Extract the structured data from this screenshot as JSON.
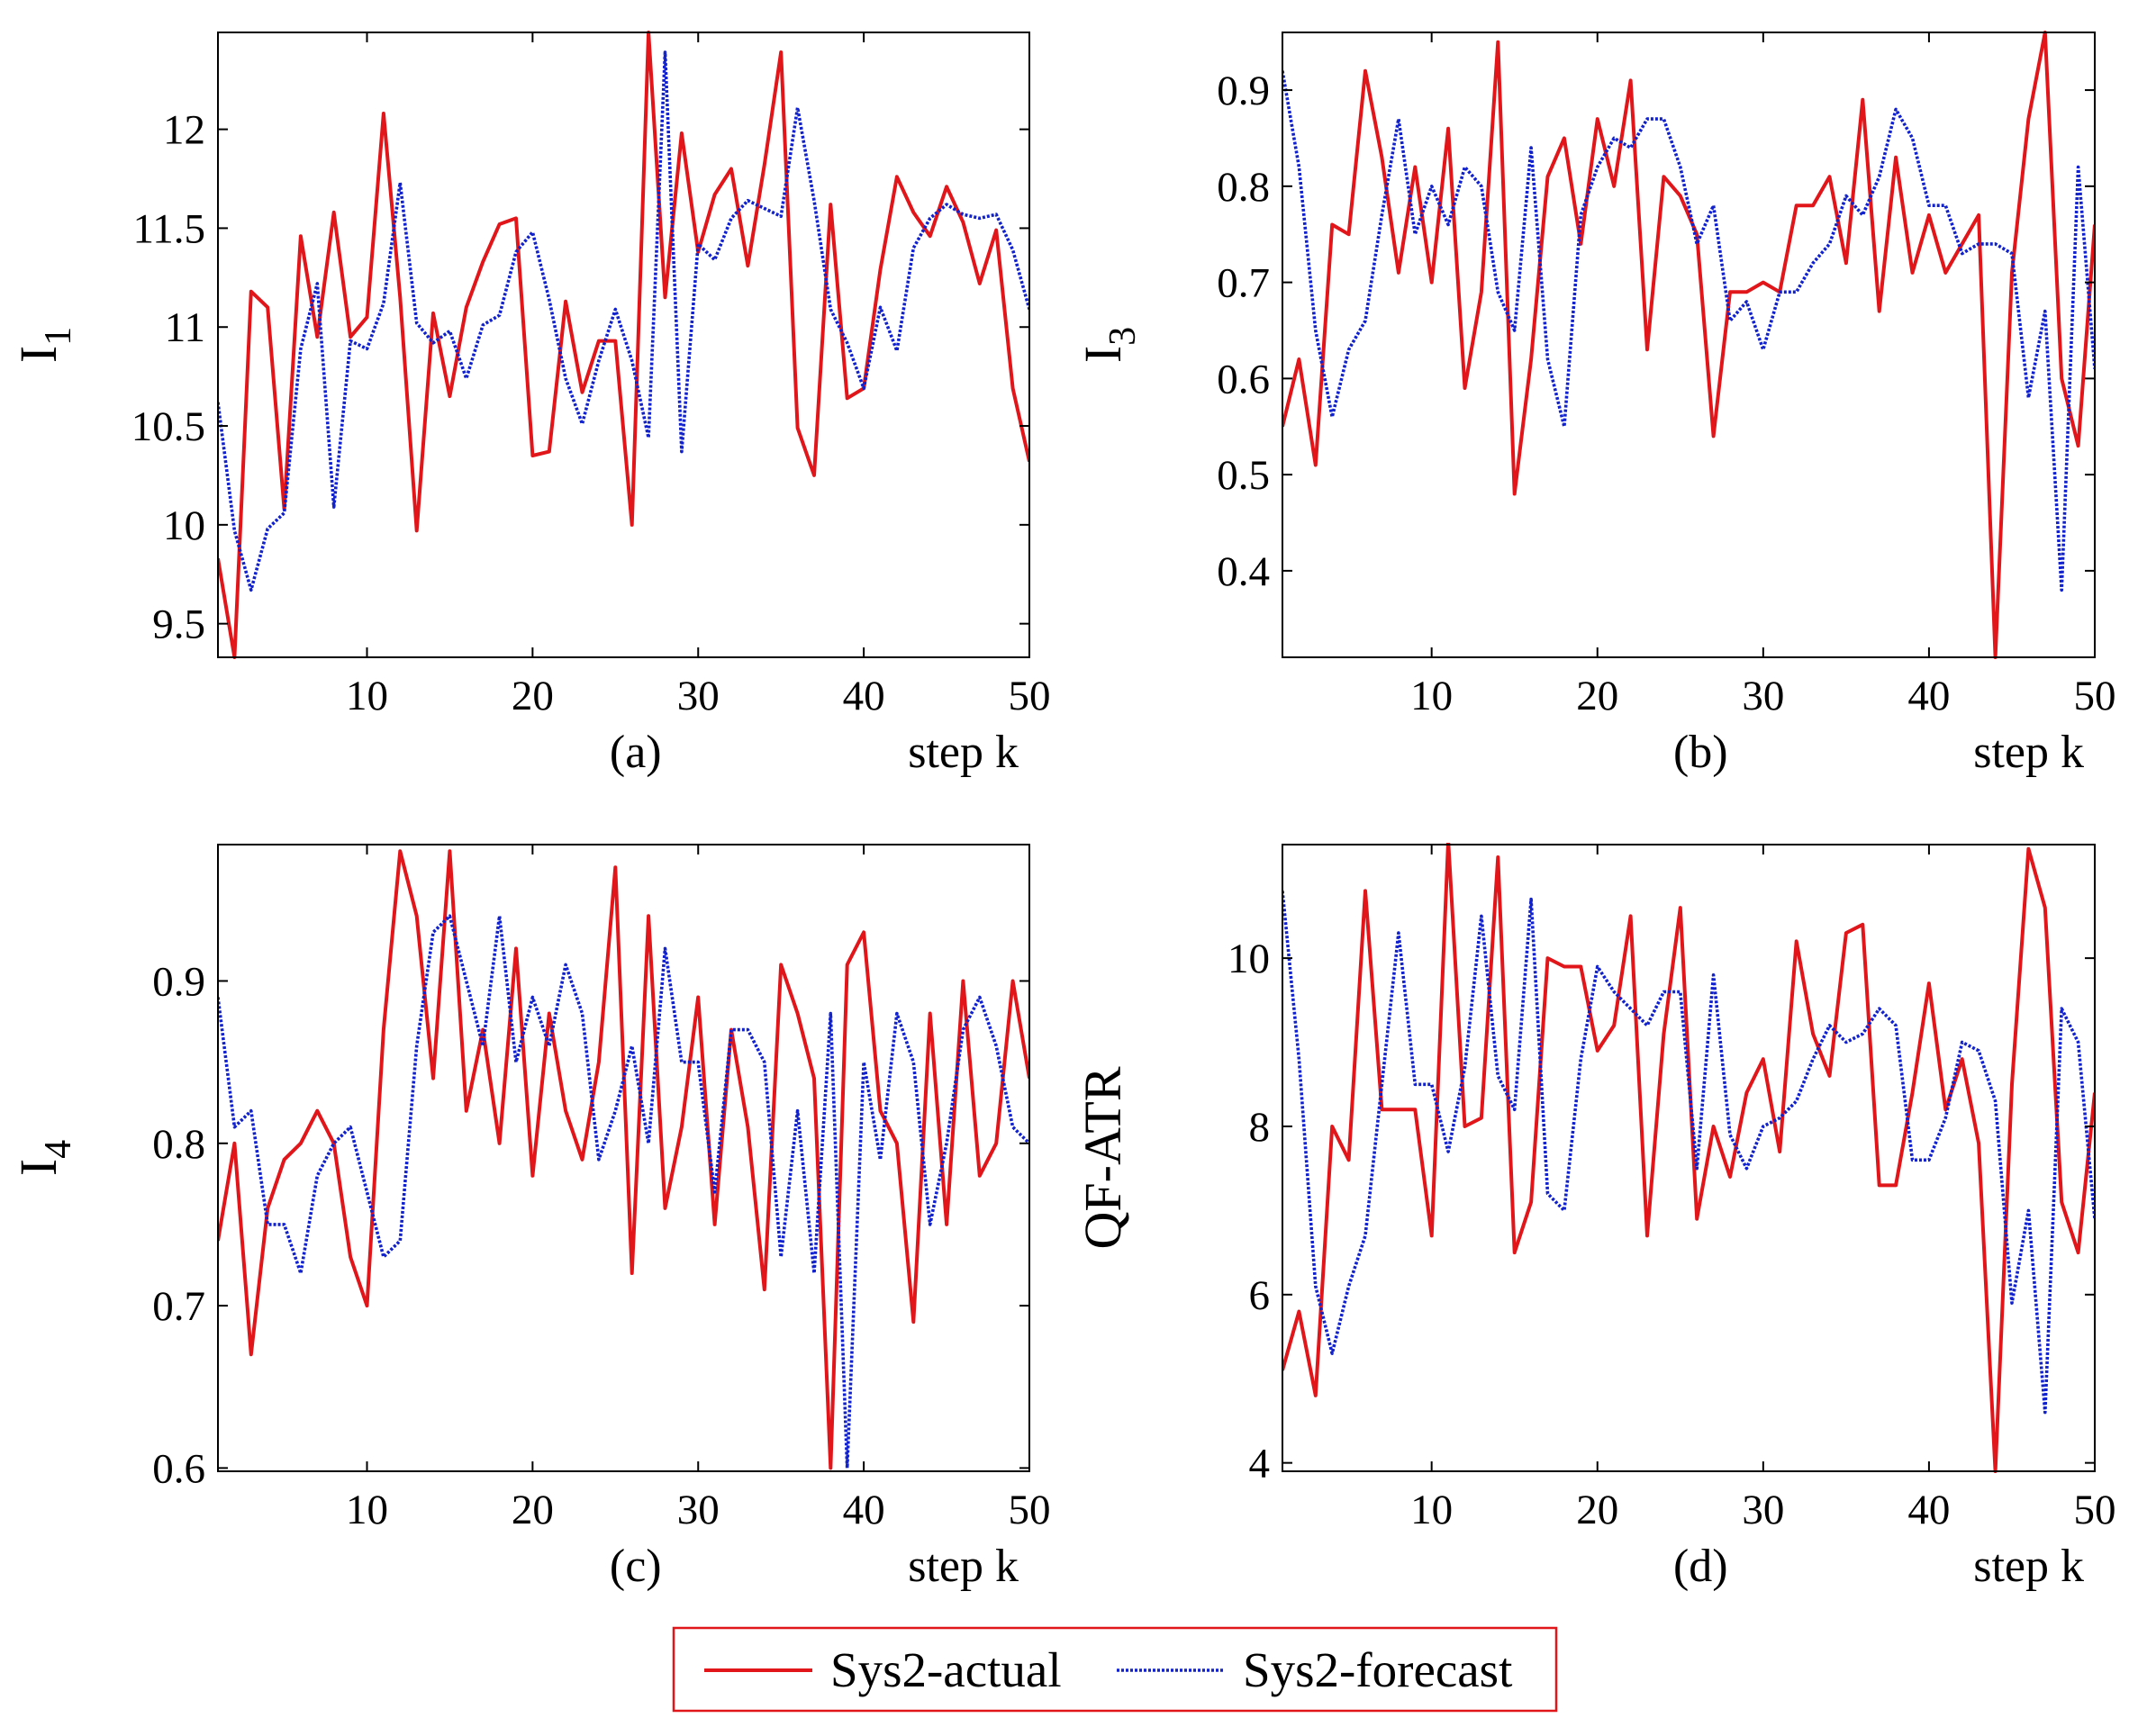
{
  "colors": {
    "actual": "#e0161b",
    "forecast": "#1122cc",
    "axis": "#000000",
    "legend_border": "#e0161b"
  },
  "legend": {
    "actual_label": "Sys2-actual",
    "forecast_label": "Sys2-forecast"
  },
  "chart_data": [
    {
      "type": "line",
      "id": "a",
      "caption": "(a)",
      "xlabel": "step k",
      "ylabel": "I",
      "ylabel_sub": "1",
      "xlim": [
        1,
        50
      ],
      "ylim": [
        9.33,
        12.49
      ],
      "xticks": [
        10,
        20,
        30,
        40,
        50
      ],
      "yticks": [
        9.5,
        10,
        10.5,
        11,
        11.5,
        12
      ],
      "ytick_labels": [
        "9.5",
        "10",
        "10.5",
        "11",
        "11.5",
        "12"
      ],
      "series": [
        {
          "name": "Sys2-actual",
          "values": [
            9.83,
            9.33,
            11.18,
            11.1,
            10.08,
            11.46,
            10.95,
            11.58,
            10.95,
            11.05,
            12.08,
            11.15,
            9.97,
            11.07,
            10.65,
            11.1,
            11.33,
            11.52,
            11.55,
            10.35,
            10.37,
            11.13,
            10.67,
            10.93,
            10.93,
            10.0,
            12.49,
            11.15,
            11.98,
            11.38,
            11.67,
            11.8,
            11.31,
            11.82,
            12.39,
            10.49,
            10.25,
            11.62,
            10.64,
            10.69,
            11.29,
            11.76,
            11.58,
            11.46,
            11.71,
            11.53,
            11.22,
            11.49,
            10.69,
            10.32
          ]
        },
        {
          "name": "Sys2-forecast",
          "values": [
            10.62,
            9.97,
            9.67,
            9.98,
            10.06,
            10.89,
            11.22,
            10.09,
            10.93,
            10.89,
            11.12,
            11.73,
            11.02,
            10.92,
            10.98,
            10.74,
            11.01,
            11.06,
            11.38,
            11.48,
            11.14,
            10.74,
            10.51,
            10.83,
            11.09,
            10.83,
            10.44,
            12.39,
            10.37,
            11.42,
            11.34,
            11.55,
            11.64,
            11.6,
            11.56,
            12.11,
            11.64,
            11.09,
            10.92,
            10.69,
            11.1,
            10.88,
            11.4,
            11.55,
            11.62,
            11.57,
            11.55,
            11.57,
            11.39,
            11.09
          ]
        }
      ]
    },
    {
      "type": "line",
      "id": "b",
      "caption": "(b)",
      "xlabel": "step k",
      "ylabel": "I",
      "ylabel_sub": "3",
      "xlim": [
        1,
        50
      ],
      "ylim": [
        0.31,
        0.96
      ],
      "xticks": [
        10,
        20,
        30,
        40,
        50
      ],
      "yticks": [
        0.4,
        0.5,
        0.6,
        0.7,
        0.8,
        0.9
      ],
      "ytick_labels": [
        "0.4",
        "0.5",
        "0.6",
        "0.7",
        "0.8",
        "0.9"
      ],
      "series": [
        {
          "name": "Sys2-actual",
          "values": [
            0.55,
            0.62,
            0.51,
            0.76,
            0.75,
            0.92,
            0.83,
            0.71,
            0.82,
            0.7,
            0.86,
            0.59,
            0.69,
            0.95,
            0.48,
            0.62,
            0.81,
            0.85,
            0.74,
            0.87,
            0.8,
            0.91,
            0.63,
            0.81,
            0.79,
            0.75,
            0.54,
            0.69,
            0.69,
            0.7,
            0.69,
            0.78,
            0.78,
            0.81,
            0.72,
            0.89,
            0.67,
            0.83,
            0.71,
            0.77,
            0.71,
            0.74,
            0.77,
            0.31,
            0.71,
            0.87,
            0.96,
            0.6,
            0.53,
            0.76
          ]
        },
        {
          "name": "Sys2-forecast",
          "values": [
            0.92,
            0.82,
            0.65,
            0.56,
            0.63,
            0.66,
            0.77,
            0.87,
            0.75,
            0.8,
            0.76,
            0.82,
            0.8,
            0.69,
            0.65,
            0.84,
            0.62,
            0.55,
            0.77,
            0.82,
            0.85,
            0.84,
            0.87,
            0.87,
            0.82,
            0.74,
            0.78,
            0.66,
            0.68,
            0.63,
            0.69,
            0.69,
            0.72,
            0.74,
            0.79,
            0.77,
            0.81,
            0.88,
            0.85,
            0.78,
            0.78,
            0.73,
            0.74,
            0.74,
            0.73,
            0.58,
            0.67,
            0.38,
            0.82,
            0.61
          ]
        }
      ]
    },
    {
      "type": "line",
      "id": "c",
      "caption": "(c)",
      "xlabel": "step k",
      "ylabel": "I",
      "ylabel_sub": "4",
      "xlim": [
        1,
        50
      ],
      "ylim": [
        0.598,
        0.984
      ],
      "xticks": [
        10,
        20,
        30,
        40,
        50
      ],
      "yticks": [
        0.6,
        0.7,
        0.8,
        0.9
      ],
      "ytick_labels": [
        "0.6",
        "0.7",
        "0.8",
        "0.9"
      ],
      "series": [
        {
          "name": "Sys2-actual",
          "values": [
            0.74,
            0.8,
            0.67,
            0.76,
            0.79,
            0.8,
            0.82,
            0.8,
            0.73,
            0.7,
            0.87,
            0.98,
            0.94,
            0.84,
            0.98,
            0.82,
            0.87,
            0.8,
            0.92,
            0.78,
            0.88,
            0.82,
            0.79,
            0.85,
            0.97,
            0.72,
            0.94,
            0.76,
            0.81,
            0.89,
            0.75,
            0.87,
            0.81,
            0.71,
            0.91,
            0.88,
            0.84,
            0.6,
            0.91,
            0.93,
            0.82,
            0.8,
            0.69,
            0.88,
            0.75,
            0.9,
            0.78,
            0.8,
            0.9,
            0.84
          ]
        },
        {
          "name": "Sys2-forecast",
          "values": [
            0.89,
            0.81,
            0.82,
            0.75,
            0.75,
            0.72,
            0.78,
            0.8,
            0.81,
            0.77,
            0.73,
            0.74,
            0.86,
            0.93,
            0.94,
            0.9,
            0.86,
            0.94,
            0.85,
            0.89,
            0.86,
            0.91,
            0.88,
            0.79,
            0.82,
            0.86,
            0.8,
            0.92,
            0.85,
            0.85,
            0.77,
            0.87,
            0.87,
            0.85,
            0.73,
            0.82,
            0.72,
            0.88,
            0.6,
            0.85,
            0.79,
            0.88,
            0.85,
            0.75,
            0.8,
            0.87,
            0.89,
            0.86,
            0.81,
            0.8
          ]
        }
      ]
    },
    {
      "type": "line",
      "id": "d",
      "caption": "(d)",
      "xlabel": "step k",
      "ylabel": "QF-ATR",
      "ylabel_sub": "",
      "xlim": [
        1,
        50
      ],
      "ylim": [
        3.9,
        11.35
      ],
      "xticks": [
        10,
        20,
        30,
        40,
        50
      ],
      "yticks": [
        4,
        6,
        8,
        10
      ],
      "ytick_labels": [
        "4",
        "6",
        "8",
        "10"
      ],
      "series": [
        {
          "name": "Sys2-actual",
          "values": [
            5.1,
            5.8,
            4.8,
            8.0,
            7.6,
            10.8,
            8.2,
            8.2,
            8.2,
            6.7,
            11.4,
            8.0,
            8.1,
            11.2,
            6.5,
            7.1,
            10.0,
            9.9,
            9.9,
            8.9,
            9.2,
            10.5,
            6.7,
            9.1,
            10.6,
            6.9,
            8.0,
            7.4,
            8.4,
            8.8,
            7.7,
            10.2,
            9.1,
            8.6,
            10.3,
            10.4,
            7.3,
            7.3,
            8.4,
            9.7,
            8.2,
            8.8,
            7.8,
            3.9,
            8.5,
            11.3,
            10.6,
            7.1,
            6.5,
            8.4
          ]
        },
        {
          "name": "Sys2-forecast",
          "values": [
            10.8,
            8.8,
            6.1,
            5.3,
            6.1,
            6.7,
            8.5,
            10.3,
            8.5,
            8.5,
            7.7,
            8.7,
            10.5,
            8.6,
            8.2,
            10.7,
            7.2,
            7.0,
            8.8,
            9.9,
            9.6,
            9.4,
            9.2,
            9.6,
            9.6,
            7.5,
            9.8,
            7.9,
            7.5,
            8.0,
            8.1,
            8.3,
            8.8,
            9.2,
            9.0,
            9.1,
            9.4,
            9.2,
            7.6,
            7.6,
            8.1,
            9.0,
            8.9,
            8.3,
            5.9,
            7.0,
            4.6,
            9.4,
            9.0,
            6.9
          ]
        }
      ]
    }
  ]
}
